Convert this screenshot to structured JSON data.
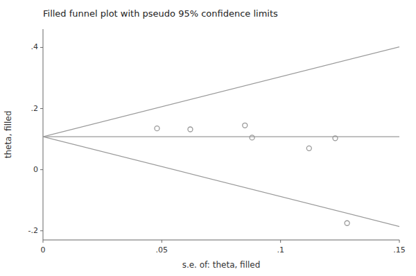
{
  "chart_data": {
    "type": "scatter",
    "title": "Filled funnel plot with pseudo 95% confidence limits",
    "x_label": "s.e. of: theta, filled",
    "y_label": "theta, filled",
    "xlim": [
      0,
      0.15
    ],
    "ylim": [
      -0.23,
      0.46
    ],
    "xticks": [
      0,
      {
        "value": 0.05,
        "label": ".05"
      },
      {
        "value": 0.1,
        "label": ".1"
      },
      {
        "value": 0.15,
        "label": ".15"
      }
    ],
    "yticks": [
      {
        "value": -0.2,
        "label": "-.2"
      },
      0,
      {
        "value": 0.2,
        "label": ".2"
      },
      {
        "value": 0.4,
        "label": ".4"
      }
    ],
    "grid": false,
    "series": [
      {
        "type": "scatter",
        "marker": "circle",
        "color": "#999999",
        "x": [
          0.048,
          0.062,
          0.085,
          0.088,
          0.112,
          0.123,
          0.128
        ],
        "values": [
          0.135,
          0.132,
          0.145,
          0.105,
          0.07,
          0.103,
          -0.175
        ]
      },
      {
        "type": "line",
        "color": "#999999",
        "x": [
          0,
          0.15
        ],
        "values": [
          0.108,
          0.108
        ]
      },
      {
        "type": "line",
        "color": "#999999",
        "x": [
          0,
          0.15
        ],
        "values": [
          0.108,
          0.402
        ]
      },
      {
        "type": "line",
        "color": "#999999",
        "x": [
          0,
          0.15
        ],
        "values": [
          0.108,
          -0.186
        ]
      }
    ]
  }
}
